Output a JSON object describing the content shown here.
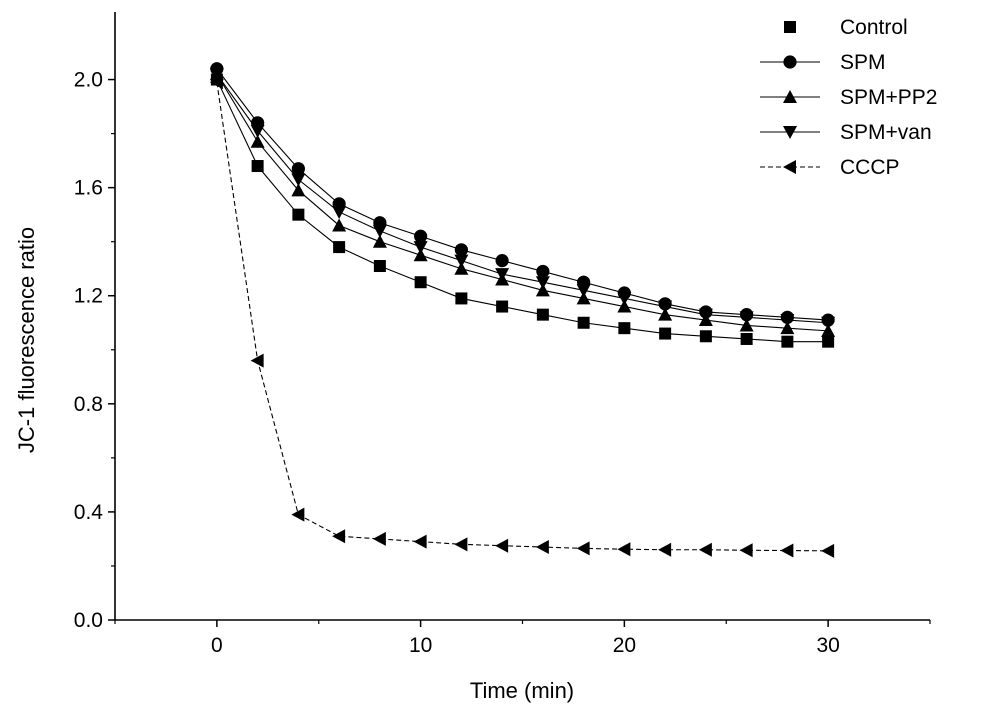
{
  "chart_data": {
    "type": "line",
    "title": "",
    "xlabel": "Time (min)",
    "ylabel": "JC-1 fluorescence ratio",
    "xlim": [
      -5,
      35
    ],
    "ylim": [
      0.0,
      2.25
    ],
    "xticks": [
      0,
      10,
      20,
      30
    ],
    "xtick_labels": [
      "0",
      "10",
      "20",
      "30"
    ],
    "yticks": [
      0.0,
      0.4,
      0.8,
      1.2,
      1.6,
      2.0
    ],
    "ytick_labels": [
      "0.0",
      "0.4",
      "0.8",
      "1.2",
      "1.6",
      "2.0"
    ],
    "grid": false,
    "legend_position": "top-right",
    "x": [
      0,
      2,
      4,
      6,
      8,
      10,
      12,
      14,
      16,
      18,
      20,
      22,
      24,
      26,
      28,
      30
    ],
    "series": [
      {
        "name": "Control",
        "marker": "square",
        "line": "solid",
        "values": [
          2.0,
          1.68,
          1.5,
          1.38,
          1.31,
          1.25,
          1.19,
          1.16,
          1.13,
          1.1,
          1.08,
          1.06,
          1.05,
          1.04,
          1.03,
          1.03
        ]
      },
      {
        "name": "SPM",
        "marker": "circle",
        "line": "solid",
        "values": [
          2.04,
          1.84,
          1.67,
          1.54,
          1.47,
          1.42,
          1.37,
          1.33,
          1.29,
          1.25,
          1.21,
          1.17,
          1.14,
          1.13,
          1.12,
          1.11
        ]
      },
      {
        "name": "SPM+PP2",
        "marker": "triangle-up",
        "line": "solid",
        "values": [
          2.02,
          1.77,
          1.59,
          1.46,
          1.4,
          1.35,
          1.3,
          1.26,
          1.22,
          1.19,
          1.16,
          1.13,
          1.11,
          1.09,
          1.08,
          1.07
        ]
      },
      {
        "name": "SPM+van",
        "marker": "triangle-down",
        "line": "solid",
        "values": [
          2.02,
          1.81,
          1.63,
          1.51,
          1.44,
          1.38,
          1.33,
          1.28,
          1.25,
          1.22,
          1.19,
          1.16,
          1.13,
          1.12,
          1.11,
          1.1
        ]
      },
      {
        "name": "CCCP",
        "marker": "triangle-left",
        "line": "dashed",
        "values": [
          1.99,
          0.96,
          0.39,
          0.31,
          0.3,
          0.29,
          0.28,
          0.275,
          0.27,
          0.265,
          0.262,
          0.26,
          0.26,
          0.258,
          0.257,
          0.256
        ]
      }
    ]
  }
}
